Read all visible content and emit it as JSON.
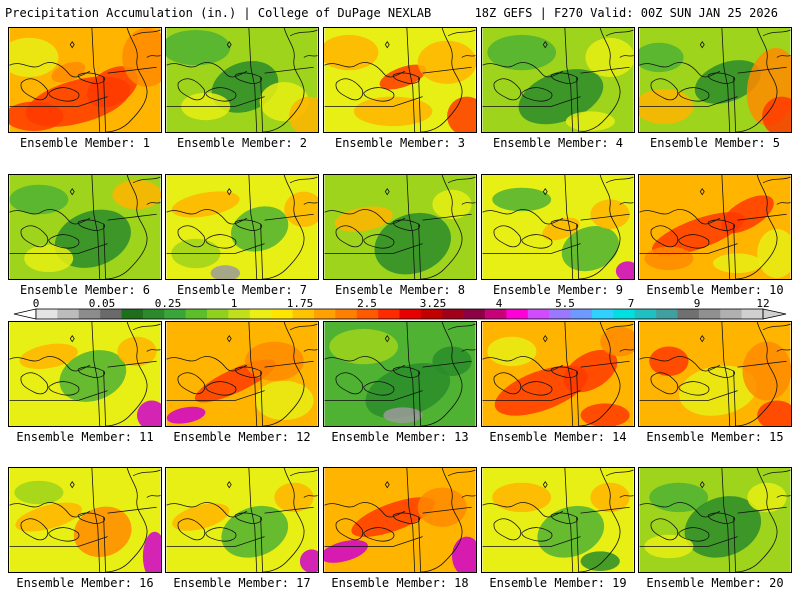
{
  "header": {
    "title": "Precipitation Accumulation (in.) | College of DuPage NEXLAB",
    "run_info": "18Z GEFS | F270 Valid: 00Z SUN JAN 25 2026"
  },
  "legend": {
    "tick_labels": [
      "0",
      "0.05",
      "0.25",
      "1",
      "1.75",
      "2.5",
      "3.25",
      "4",
      "5.5",
      "7",
      "9",
      "12"
    ],
    "colors": [
      "#e4e4e4",
      "#bcbcbc",
      "#8c8c8c",
      "#6a6a6a",
      "#1e6e1e",
      "#2c8a2c",
      "#3aa53a",
      "#5cbf2a",
      "#8fd11e",
      "#c2e01a",
      "#ecef14",
      "#ffe600",
      "#ffc400",
      "#ffa200",
      "#ff8000",
      "#ff5a00",
      "#ff2a00",
      "#e60000",
      "#c20000",
      "#a0001a",
      "#8c0044",
      "#c8007a",
      "#ff00d6",
      "#d24cff",
      "#9a78ff",
      "#6e9aff",
      "#30d0ff",
      "#00e0e0",
      "#20c0c0",
      "#40a0a0",
      "#707070",
      "#909090",
      "#b0b0b0",
      "#d0d0d0"
    ]
  },
  "member_label_prefix": "Ensemble Member: ",
  "members": [
    {
      "label": "Ensemble Member: 1"
    },
    {
      "label": "Ensemble Member: 2"
    },
    {
      "label": "Ensemble Member: 3"
    },
    {
      "label": "Ensemble Member: 4"
    },
    {
      "label": "Ensemble Member: 5"
    },
    {
      "label": "Ensemble Member: 6"
    },
    {
      "label": "Ensemble Member: 7"
    },
    {
      "label": "Ensemble Member: 8"
    },
    {
      "label": "Ensemble Member: 9"
    },
    {
      "label": "Ensemble Member: 10"
    },
    {
      "label": "Ensemble Member: 11"
    },
    {
      "label": "Ensemble Member: 12"
    },
    {
      "label": "Ensemble Member: 13"
    },
    {
      "label": "Ensemble Member: 14"
    },
    {
      "label": "Ensemble Member: 15"
    },
    {
      "label": "Ensemble Member: 16"
    },
    {
      "label": "Ensemble Member: 17"
    },
    {
      "label": "Ensemble Member: 18"
    },
    {
      "label": "Ensemble Member: 19"
    },
    {
      "label": "Ensemble Member: 20"
    }
  ],
  "field_palette": {
    "green_dark": "#2a8c2a",
    "green": "#4fb232",
    "yellow_green": "#9ed41c",
    "yellow": "#e8ef14",
    "orange": "#ffb400",
    "orange_dark": "#ff8a00",
    "red": "#ff3a00",
    "gray": "#9a9a9a",
    "magenta": "#d000d0"
  }
}
